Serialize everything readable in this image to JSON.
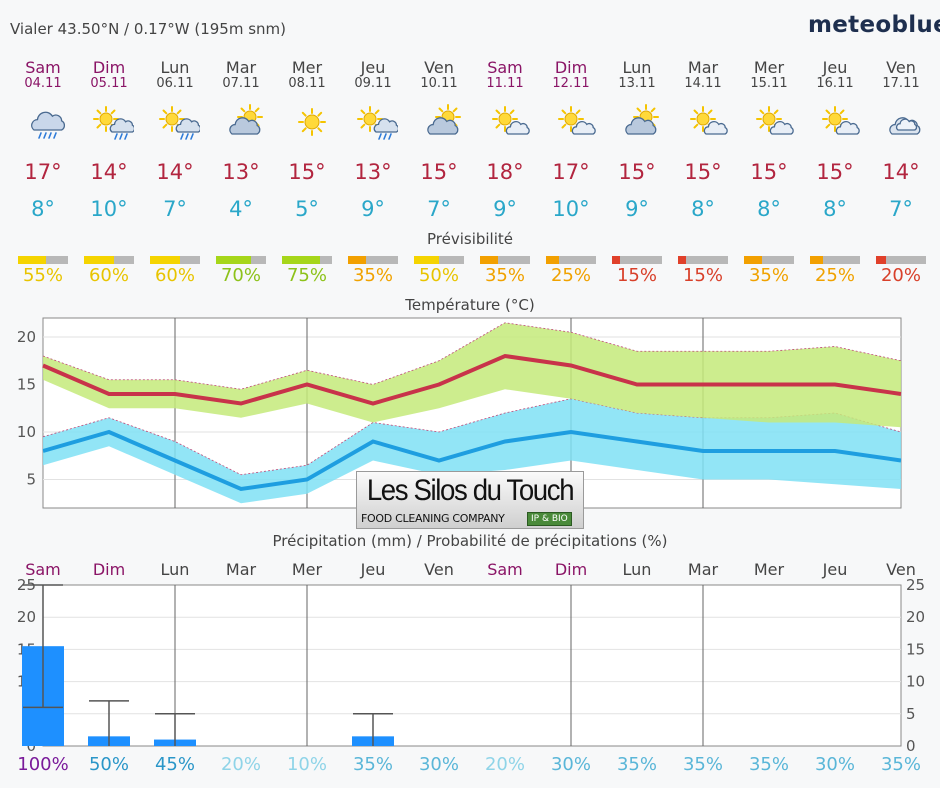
{
  "header": {
    "location": "Vialer  43.50°N / 0.17°W (195m snm)",
    "brand": "meteoblue"
  },
  "days": [
    {
      "name": "Sam",
      "date": "04.11",
      "icon": "rain-cloud-icon",
      "tmax": "17°",
      "tmin": "8°",
      "pred": 55,
      "pred_label": "55%",
      "weekend": true
    },
    {
      "name": "Dim",
      "date": "05.11",
      "icon": "sun-rain-icon",
      "tmax": "14°",
      "tmin": "10°",
      "pred": 60,
      "pred_label": "60%",
      "weekend": true
    },
    {
      "name": "Lun",
      "date": "06.11",
      "icon": "sun-rain-icon",
      "tmax": "14°",
      "tmin": "7°",
      "pred": 60,
      "pred_label": "60%",
      "weekend": false
    },
    {
      "name": "Mar",
      "date": "07.11",
      "icon": "cloud-sun-icon",
      "tmax": "13°",
      "tmin": "4°",
      "pred": 70,
      "pred_label": "70%",
      "weekend": false
    },
    {
      "name": "Mer",
      "date": "08.11",
      "icon": "sun-icon",
      "tmax": "15°",
      "tmin": "5°",
      "pred": 75,
      "pred_label": "75%",
      "weekend": false
    },
    {
      "name": "Jeu",
      "date": "09.11",
      "icon": "sun-rain-icon",
      "tmax": "13°",
      "tmin": "9°",
      "pred": 35,
      "pred_label": "35%",
      "weekend": false
    },
    {
      "name": "Ven",
      "date": "10.11",
      "icon": "cloud-sun-icon",
      "tmax": "15°",
      "tmin": "7°",
      "pred": 50,
      "pred_label": "50%",
      "weekend": false
    },
    {
      "name": "Sam",
      "date": "11.11",
      "icon": "sun-cloud-icon",
      "tmax": "18°",
      "tmin": "9°",
      "pred": 35,
      "pred_label": "35%",
      "weekend": true
    },
    {
      "name": "Dim",
      "date": "12.11",
      "icon": "sun-cloud-icon",
      "tmax": "17°",
      "tmin": "10°",
      "pred": 25,
      "pred_label": "25%",
      "weekend": true
    },
    {
      "name": "Lun",
      "date": "13.11",
      "icon": "cloud-sun-icon",
      "tmax": "15°",
      "tmin": "9°",
      "pred": 15,
      "pred_label": "15%",
      "weekend": false
    },
    {
      "name": "Mar",
      "date": "14.11",
      "icon": "sun-cloud-icon",
      "tmax": "15°",
      "tmin": "8°",
      "pred": 15,
      "pred_label": "15%",
      "weekend": false
    },
    {
      "name": "Mer",
      "date": "15.11",
      "icon": "sun-cloud-icon",
      "tmax": "15°",
      "tmin": "8°",
      "pred": 35,
      "pred_label": "35%",
      "weekend": false
    },
    {
      "name": "Jeu",
      "date": "16.11",
      "icon": "sun-cloud-icon",
      "tmax": "15°",
      "tmin": "8°",
      "pred": 25,
      "pred_label": "25%",
      "weekend": false
    },
    {
      "name": "Ven",
      "date": "17.11",
      "icon": "cloud-icon",
      "tmax": "14°",
      "tmin": "7°",
      "pred": 20,
      "pred_label": "20%",
      "weekend": false
    }
  ],
  "predictability": {
    "title": "Prévisibilité"
  },
  "colors": {
    "weekend": "#8a1466",
    "tmax": "#b2253f",
    "tmin": "#2aa7c9",
    "temp_band_max": "#c4ea7a",
    "temp_band_min": "#7fe0f5",
    "precip_bar": "#1e90ff",
    "pred_green": "#a6d61a",
    "pred_yellow": "#f5d400",
    "pred_orange": "#f2a000",
    "pred_red": "#e0402a"
  },
  "logo": {
    "title": "Les Silos du Touch",
    "subtitle": "FOOD CLEANING COMPANY",
    "badge": "IP & BIO"
  },
  "chart_data": [
    {
      "type": "line",
      "title": "Température (°C)",
      "ylim": [
        2,
        22
      ],
      "yticks": [
        5,
        10,
        15,
        20
      ],
      "grid": true,
      "series": [
        {
          "values": [
            17,
            14,
            14,
            13,
            15,
            13,
            15,
            18,
            17,
            15,
            15,
            15,
            15,
            14
          ],
          "band_low": [
            15.5,
            12.5,
            12.5,
            11.5,
            13,
            11,
            12.5,
            14.5,
            13.5,
            12,
            11.5,
            11,
            11,
            10.5
          ],
          "band_high": [
            18,
            15.5,
            15.5,
            14.5,
            16.5,
            15,
            17.5,
            21.5,
            20.5,
            18.5,
            18.5,
            18.5,
            19,
            17.5
          ]
        },
        {
          "values": [
            8,
            10,
            7,
            4,
            5,
            9,
            7,
            9,
            10,
            9,
            8,
            8,
            8,
            7
          ],
          "band_low": [
            6.5,
            8.5,
            5.5,
            2.5,
            3.5,
            7,
            5.5,
            6,
            7,
            6,
            5,
            5,
            4.5,
            4
          ],
          "band_high": [
            9.5,
            11.5,
            9,
            5.5,
            6.5,
            11,
            10,
            12,
            13.5,
            12,
            11.5,
            11.5,
            12,
            10
          ]
        }
      ]
    },
    {
      "type": "bar",
      "title": "Précipitation (mm) / Probabilité de précipitations (%)",
      "ylim": [
        0,
        25
      ],
      "yticks": [
        0,
        5,
        10,
        15,
        20,
        25
      ],
      "categories": [
        "Sam",
        "Dim",
        "Lun",
        "Mar",
        "Mer",
        "Jeu",
        "Ven",
        "Sam",
        "Dim",
        "Lun",
        "Mar",
        "Mer",
        "Jeu",
        "Ven"
      ],
      "values": [
        15.5,
        1.5,
        1,
        0,
        0,
        1.5,
        0,
        0,
        0,
        0,
        0,
        0,
        0,
        0
      ],
      "error_high": [
        25,
        7,
        5,
        0,
        0,
        5,
        0,
        0,
        0,
        0,
        0,
        0,
        0,
        0
      ],
      "error_low": [
        6,
        0,
        0,
        0,
        0,
        0,
        0,
        0,
        0,
        0,
        0,
        0,
        0,
        0
      ],
      "probability": [
        "100%",
        "50%",
        "45%",
        "20%",
        "10%",
        "35%",
        "30%",
        "20%",
        "30%",
        "35%",
        "35%",
        "35%",
        "30%",
        "35%"
      ],
      "probability_values": [
        100,
        50,
        45,
        20,
        10,
        35,
        30,
        20,
        30,
        35,
        35,
        35,
        30,
        35
      ]
    }
  ]
}
